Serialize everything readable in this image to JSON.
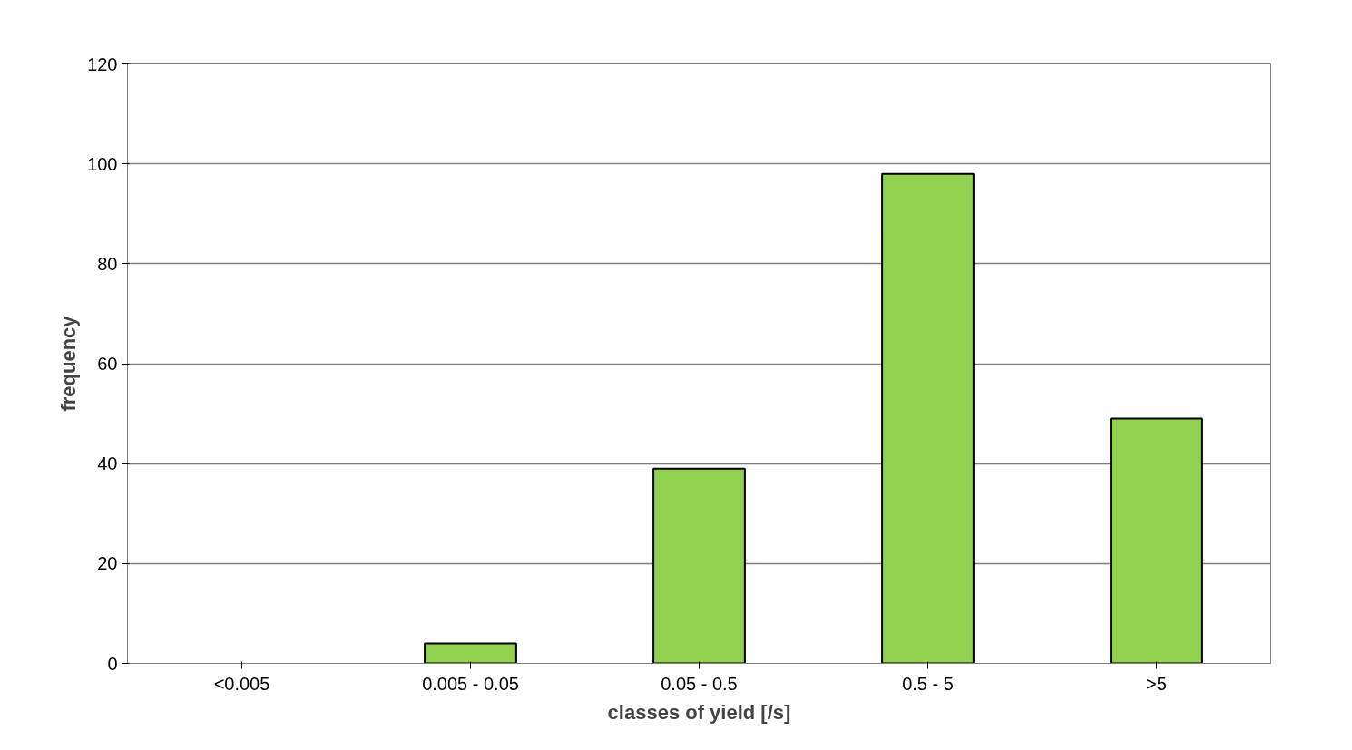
{
  "chart_data": {
    "type": "bar",
    "xlabel": "classes of yield [/s]",
    "ylabel": "frequency",
    "categories": [
      "<0.005",
      "0.005 - 0.05",
      "0.05 - 0.5",
      "0.5 - 5",
      ">5"
    ],
    "values": [
      0,
      4,
      39,
      98,
      49
    ],
    "color": "#92d050",
    "ylim": [
      0,
      120
    ],
    "yticks": [
      0,
      20,
      40,
      60,
      80,
      100,
      120
    ],
    "grid": "y"
  }
}
